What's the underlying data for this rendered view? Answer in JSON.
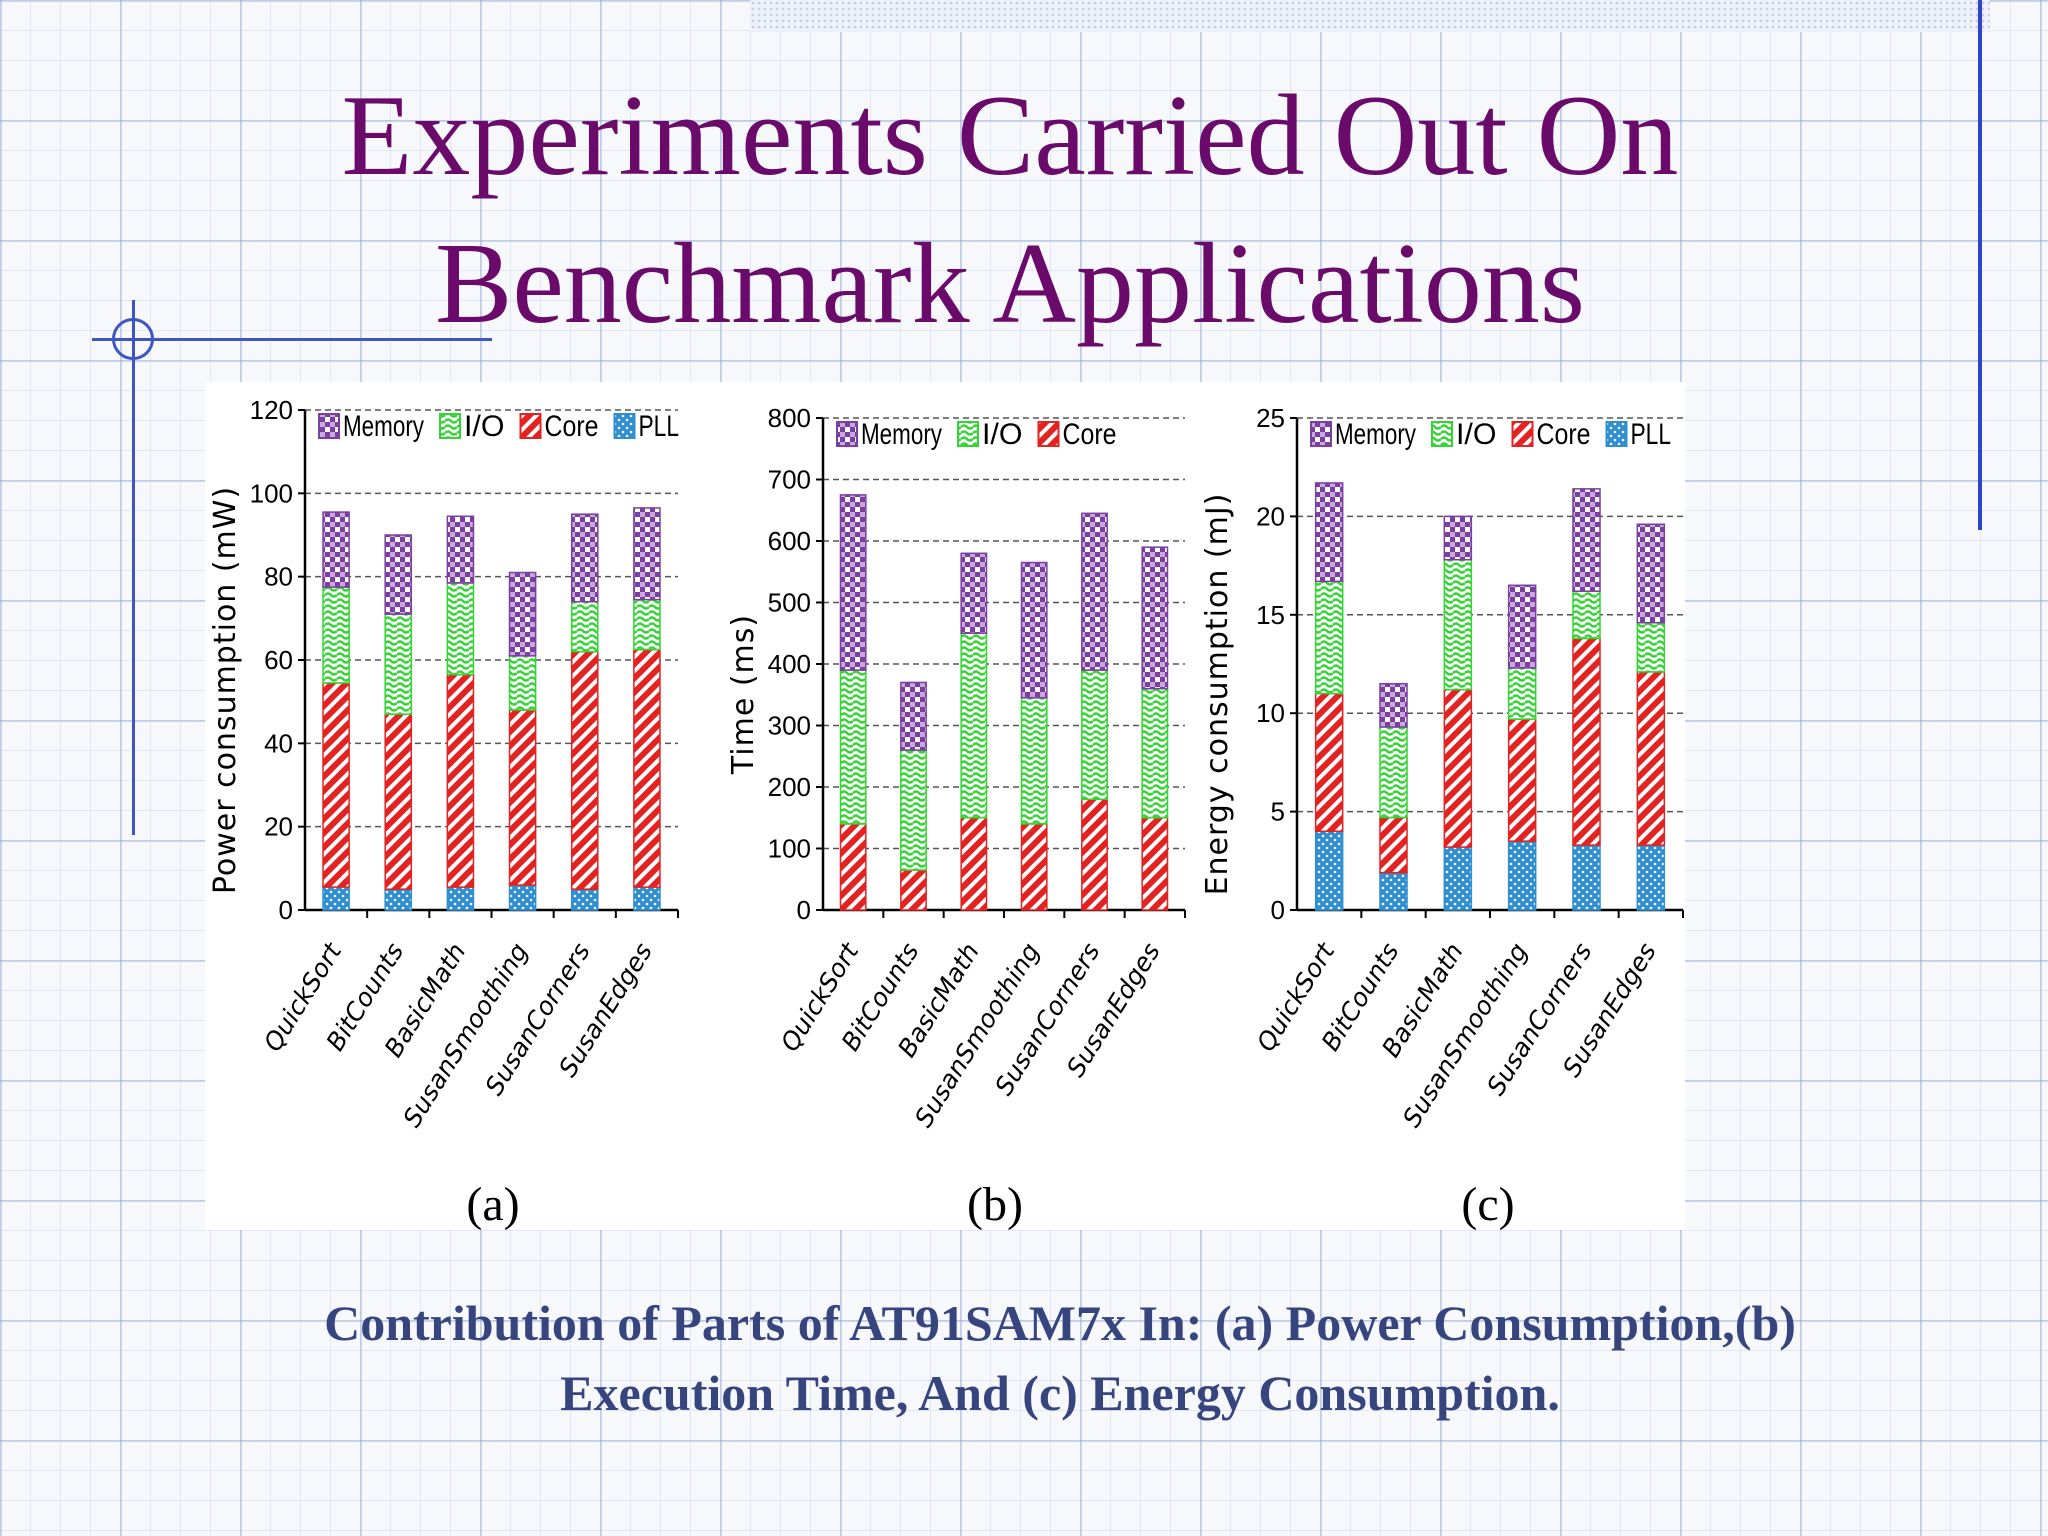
{
  "slide": {
    "title_line1": "Experiments Carried Out On",
    "title_line2": "Benchmark Applications",
    "caption_line1": "Contribution of Parts of AT91SAM7x In: (a) Power Consumption,(b)",
    "caption_line2": "Execution Time, And (c) Energy Consumption."
  },
  "colors": {
    "title": "#6a0a6a",
    "caption": "#37457f",
    "memory": "#7b3fa0",
    "io": "#33d433",
    "core": "#e32222",
    "pll": "#2f8fd0"
  },
  "chart_data": [
    {
      "type": "bar",
      "stacked": true,
      "panel_label": "(a)",
      "ylabel": "Power consumption (mW)",
      "ylim": [
        0,
        120
      ],
      "yticks": [
        0,
        20,
        40,
        60,
        80,
        100,
        120
      ],
      "grid": true,
      "legend": "top",
      "categories": [
        "QuickSort",
        "BitCounts",
        "BasicMath",
        "SusanSmoothing",
        "SusanCorners",
        "SusanEdges"
      ],
      "series": [
        {
          "name": "Memory",
          "values": [
            18,
            19,
            16,
            20,
            21,
            22
          ]
        },
        {
          "name": "I/O",
          "values": [
            23,
            24,
            22,
            13,
            12,
            12
          ]
        },
        {
          "name": "Core",
          "values": [
            49,
            42,
            51,
            42,
            57,
            57
          ]
        },
        {
          "name": "PLL",
          "values": [
            5.5,
            5,
            5.5,
            6,
            5,
            5.5
          ]
        }
      ]
    },
    {
      "type": "bar",
      "stacked": true,
      "panel_label": "(b)",
      "ylabel": "Time (ms)",
      "ylim": [
        0,
        800
      ],
      "yticks": [
        0,
        100,
        200,
        300,
        400,
        500,
        600,
        700,
        800
      ],
      "grid": true,
      "legend": "top",
      "categories": [
        "QuickSort",
        "BitCounts",
        "BasicMath",
        "SusanSmoothing",
        "SusanCorners",
        "SusanEdges"
      ],
      "series": [
        {
          "name": "Memory",
          "values": [
            285,
            110,
            130,
            220,
            255,
            230
          ]
        },
        {
          "name": "I/O",
          "values": [
            250,
            195,
            300,
            205,
            210,
            210
          ]
        },
        {
          "name": "Core",
          "values": [
            140,
            65,
            150,
            140,
            180,
            150
          ]
        }
      ]
    },
    {
      "type": "bar",
      "stacked": true,
      "panel_label": "(c)",
      "ylabel": "Energy consumption (mJ)",
      "ylim": [
        0,
        25
      ],
      "yticks": [
        0,
        5,
        10,
        15,
        20,
        25
      ],
      "grid": true,
      "legend": "top",
      "categories": [
        "QuickSort",
        "BitCounts",
        "BasicMath",
        "SusanSmoothing",
        "SusanCorners",
        "SusanEdges"
      ],
      "series": [
        {
          "name": "Memory",
          "values": [
            5,
            2.2,
            2.2,
            4.2,
            5.2,
            5
          ]
        },
        {
          "name": "I/O",
          "values": [
            5.7,
            4.6,
            6.6,
            2.6,
            2.4,
            2.5
          ]
        },
        {
          "name": "Core",
          "values": [
            7,
            2.8,
            8,
            6.2,
            10.5,
            8.8
          ]
        },
        {
          "name": "PLL",
          "values": [
            4,
            1.9,
            3.2,
            3.5,
            3.3,
            3.3
          ]
        }
      ]
    }
  ]
}
